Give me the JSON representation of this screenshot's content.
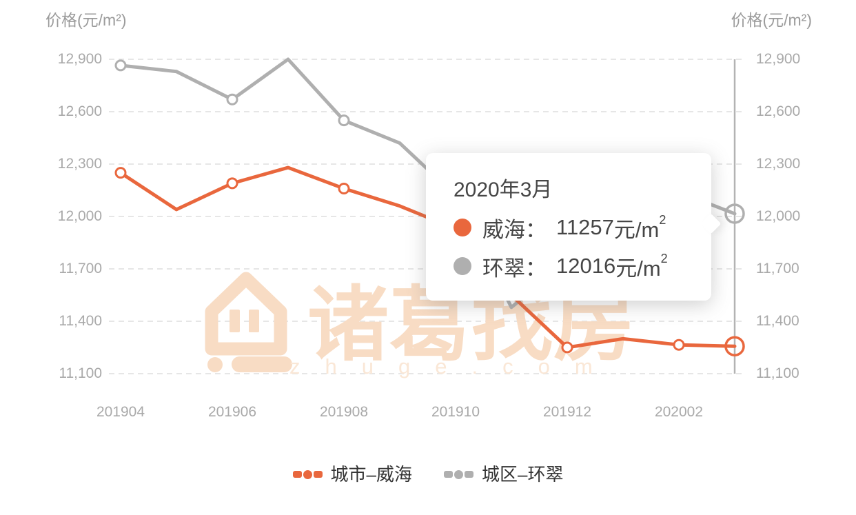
{
  "titles": {
    "left": "价格(元/m²)",
    "right": "价格(元/m²)"
  },
  "y_axis": {
    "left_labels": [
      "12,900",
      "12,600",
      "12,300",
      "12,000",
      "11,700",
      "11,400",
      "11,100"
    ],
    "right_labels": [
      "12,900",
      "12,600",
      "12,300",
      "12,000",
      "11,700",
      "11,400",
      "11,100"
    ]
  },
  "x_axis": {
    "labels": [
      "201904",
      "201906",
      "201908",
      "201910",
      "201912",
      "202002"
    ]
  },
  "legend": {
    "items": [
      {
        "label": "城市–威海",
        "color": "#E9673D"
      },
      {
        "label": "城区–环翠",
        "color": "#AFAFAF"
      }
    ]
  },
  "tooltip": {
    "title": "2020年3月",
    "rows": [
      {
        "label": "威海：",
        "value": "11257",
        "unit": "元/m",
        "sup": "2",
        "color": "#E9673D"
      },
      {
        "label": "环翠：",
        "value": "12016",
        "unit": "元/m",
        "sup": "2",
        "color": "#AFAFAF"
      }
    ]
  },
  "watermark": {
    "brand": "诸葛找房",
    "domain": "zhuge.com"
  },
  "colors": {
    "weihai_line": "#E9673D",
    "huancui_line": "#AFAFAF",
    "grid_line": "#E6E6E6",
    "hover_line": "#B3B3B3",
    "axis_text": "#A9A9A9",
    "watermark": "#F8DCC4"
  },
  "chart_data": {
    "type": "line",
    "x": [
      "201904",
      "201905",
      "201906",
      "201907",
      "201908",
      "201909",
      "201910",
      "201911",
      "201912",
      "202001",
      "202002",
      "202003"
    ],
    "shown_x_tick_labels": [
      "201904",
      "201906",
      "201908",
      "201910",
      "201912",
      "202002"
    ],
    "series": [
      {
        "name": "城市–威海",
        "short_name": "威海",
        "color": "#E9673D",
        "values": [
          12250,
          12040,
          12190,
          12280,
          12160,
          12060,
          11930,
          11550,
          11250,
          11300,
          11265,
          11257
        ]
      },
      {
        "name": "城区–环翠",
        "short_name": "环翠",
        "color": "#AFAFAF",
        "values": [
          12865,
          12830,
          12670,
          12900,
          12550,
          12420,
          12120,
          11480,
          11740,
          11950,
          12140,
          12016
        ]
      }
    ],
    "ylabel": "价格(元/m²)",
    "ylim": [
      11100,
      12900
    ],
    "y_ticks": [
      12900,
      12600,
      12300,
      12000,
      11700,
      11400,
      11100
    ],
    "grid": "horizontal dashed",
    "legend_position": "bottom",
    "highlighted_x": "202003",
    "highlighted_values": {
      "威海": 11257,
      "环翠": 12016
    },
    "markers_on_labeled_points_only": true
  }
}
